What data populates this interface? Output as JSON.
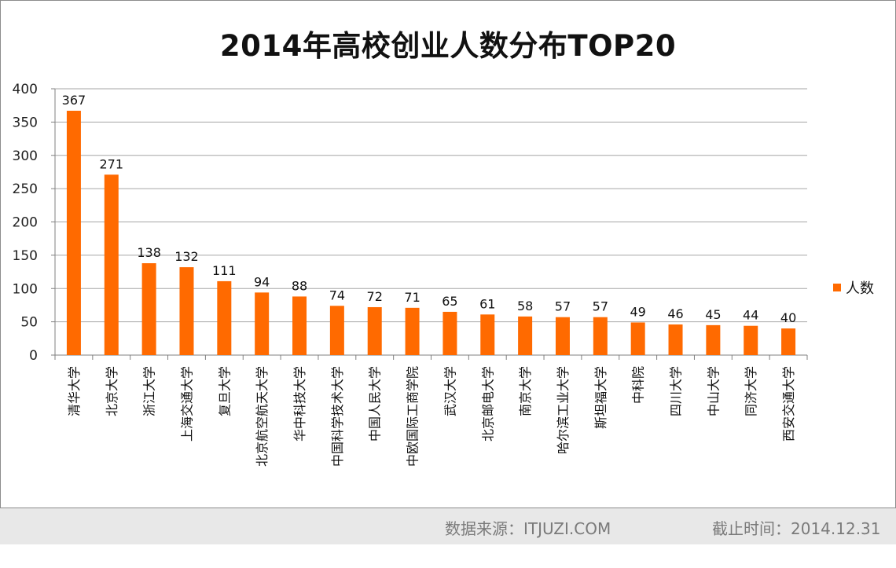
{
  "chart_data": {
    "type": "bar",
    "title": "2014年高校创业人数分布TOP20",
    "xlabel": "",
    "ylabel": "",
    "ylim": [
      0,
      400
    ],
    "yticks": [
      0,
      50,
      100,
      150,
      200,
      250,
      300,
      350,
      400
    ],
    "grid": true,
    "legend": "right",
    "categories": [
      "清华大学",
      "北京大学",
      "浙江大学",
      "上海交通大学",
      "复旦大学",
      "北京航空航天大学",
      "华中科技大学",
      "中国科学技术大学",
      "中国人民大学",
      "中欧国际工商学院",
      "武汉大学",
      "北京邮电大学",
      "南京大学",
      "哈尔滨工业大学",
      "斯坦福大学",
      "中科院",
      "四川大学",
      "中山大学",
      "同济大学",
      "西安交通大学"
    ],
    "series": [
      {
        "name": "人数",
        "color": "#ff6a00",
        "values": [
          367,
          271,
          138,
          132,
          111,
          94,
          88,
          74,
          72,
          71,
          65,
          61,
          58,
          57,
          57,
          49,
          46,
          45,
          44,
          40
        ]
      }
    ]
  },
  "footer": {
    "source": "数据来源：ITJUZI.COM",
    "date": "截止时间：2014.12.31"
  },
  "colors": {
    "bar": "#ff6a00",
    "grid": "#a6a6a6",
    "footer_bg": "#e8e8e8"
  }
}
